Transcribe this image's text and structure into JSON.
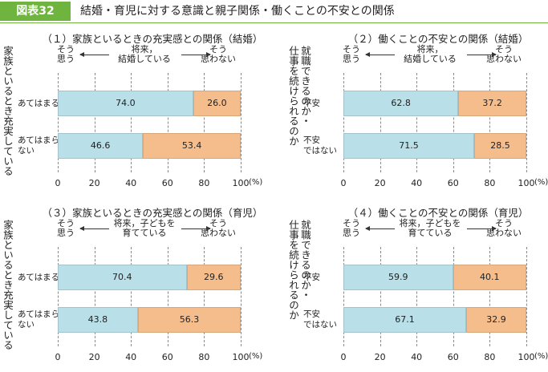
{
  "header": {
    "label": "図表32",
    "title": "結婚・育児に対する意識と親子関係・働くことの不安との関係"
  },
  "chart_data": [
    {
      "type": "bar",
      "title": "（１）家族といるときの充実感との関係（結婚）",
      "side_label": "家族といるとき充実している",
      "legend_center": "将来，\n結婚している",
      "categories": [
        "あてはまる",
        "あてはまら\nない"
      ],
      "series": [
        {
          "name": "そう\n思う",
          "color": "#b9dfe9",
          "values": [
            74.0,
            46.6
          ],
          "value_labels": [
            "74.0",
            "46.6"
          ]
        },
        {
          "name": "そう\n思わない",
          "color": "#f6bd8c",
          "values": [
            26.0,
            53.4
          ],
          "value_labels": [
            "26.0",
            "53.4"
          ]
        }
      ],
      "xlim": [
        0,
        100
      ],
      "xticks": [
        0,
        20,
        40,
        60,
        80,
        100
      ],
      "x_unit": "(%)",
      "grid": true
    },
    {
      "type": "bar",
      "title": "（２）働くことの不安との関係（結婚）",
      "side_label": "就職できるのか・\n仕事を続けられるのか",
      "legend_center": "将来，\n結婚している",
      "categories": [
        "不安",
        "不安\nではない"
      ],
      "series": [
        {
          "name": "そう\n思う",
          "color": "#b9dfe9",
          "values": [
            62.8,
            71.5
          ],
          "value_labels": [
            "62.8",
            "71.5"
          ]
        },
        {
          "name": "そう\n思わない",
          "color": "#f6bd8c",
          "values": [
            37.2,
            28.5
          ],
          "value_labels": [
            "37.2",
            "28.5"
          ]
        }
      ],
      "xlim": [
        0,
        100
      ],
      "xticks": [
        0,
        20,
        40,
        60,
        80,
        100
      ],
      "x_unit": "(%)",
      "grid": true
    },
    {
      "type": "bar",
      "title": "（３）家族といるときの充実感との関係（育児）",
      "side_label": "家族といるとき充実している",
      "legend_center": "将来，子どもを\n育てている",
      "categories": [
        "あてはまる",
        "あてはまら\nない"
      ],
      "series": [
        {
          "name": "そう\n思う",
          "color": "#b9dfe9",
          "values": [
            70.4,
            43.8
          ],
          "value_labels": [
            "70.4",
            "43.8"
          ]
        },
        {
          "name": "そう\n思わない",
          "color": "#f6bd8c",
          "values": [
            29.6,
            56.3
          ],
          "value_labels": [
            "29.6",
            "56.3"
          ]
        }
      ],
      "xlim": [
        0,
        100
      ],
      "xticks": [
        0,
        20,
        40,
        60,
        80,
        100
      ],
      "x_unit": "(%)",
      "grid": true
    },
    {
      "type": "bar",
      "title": "（４）働くことの不安との関係（育児）",
      "side_label": "就職できるのか・\n仕事を続けられるのか",
      "legend_center": "将来，子どもを\n育てている",
      "categories": [
        "不安",
        "不安\nではない"
      ],
      "series": [
        {
          "name": "そう\n思う",
          "color": "#b9dfe9",
          "values": [
            59.9,
            67.1
          ],
          "value_labels": [
            "59.9",
            "67.1"
          ]
        },
        {
          "name": "そう\n思わない",
          "color": "#f6bd8c",
          "values": [
            40.1,
            32.9
          ],
          "value_labels": [
            "40.1",
            "32.9"
          ]
        }
      ],
      "xlim": [
        0,
        100
      ],
      "xticks": [
        0,
        20,
        40,
        60,
        80,
        100
      ],
      "x_unit": "(%)",
      "grid": true
    }
  ]
}
